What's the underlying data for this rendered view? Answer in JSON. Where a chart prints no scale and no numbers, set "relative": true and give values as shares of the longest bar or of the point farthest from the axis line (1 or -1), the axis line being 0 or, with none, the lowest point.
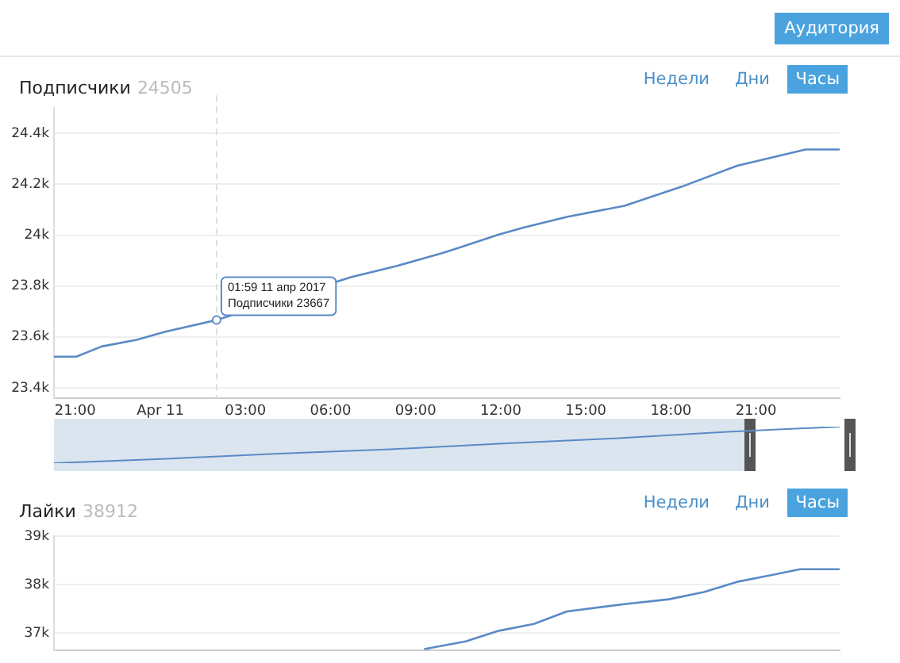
{
  "chart_data": [
    {
      "type": "other",
      "title": "Аудитория"
    },
    {
      "type": "line",
      "title": "Подписчики",
      "subtitle": "24505",
      "color": "#5a8ac6",
      "grid": "y",
      "x": [
        "2017-04-10T20:15",
        "2017-04-10T21:02",
        "2017-04-10T21:56",
        "2017-04-10T23:10",
        "2017-04-11T00:09",
        "2017-04-11T01:59",
        "2017-04-11T06:43",
        "2017-04-11T08:21",
        "2017-04-11T09:57",
        "2017-04-11T10:22",
        "2017-04-11T11:56",
        "2017-04-11T12:48",
        "2017-04-11T14:20",
        "2017-04-11T16:22",
        "2017-04-11T18:23",
        "2017-04-11T20:20",
        "2017-04-11T22:45",
        "2017-04-11T23:57"
      ],
      "values": [
        23523,
        23523,
        23563,
        23589,
        23620,
        23667,
        23835,
        23880,
        23930,
        23945,
        24003,
        24030,
        24072,
        24116,
        24191,
        24273,
        24337,
        24337
      ],
      "xlim": [
        "2017-04-10T20:15",
        "2017-04-11T23:57"
      ],
      "xticks": [
        {
          "value": "2017-04-10T21:00",
          "label": "21:00"
        },
        {
          "value": "2017-04-11T00:00",
          "label": "Apr 11"
        },
        {
          "value": "2017-04-11T03:00",
          "label": "03:00"
        },
        {
          "value": "2017-04-11T06:00",
          "label": "06:00"
        },
        {
          "value": "2017-04-11T09:00",
          "label": "09:00"
        },
        {
          "value": "2017-04-11T12:00",
          "label": "12:00"
        },
        {
          "value": "2017-04-11T15:00",
          "label": "15:00"
        },
        {
          "value": "2017-04-11T18:00",
          "label": "18:00"
        },
        {
          "value": "2017-04-11T21:00",
          "label": "21:00"
        }
      ],
      "ylim": [
        23360,
        24500
      ],
      "yticks": [
        {
          "value": 23400,
          "label": "23.4k"
        },
        {
          "value": 23600,
          "label": "23.6k"
        },
        {
          "value": 23800,
          "label": "23.8k"
        },
        {
          "value": 24000,
          "label": "24k"
        },
        {
          "value": 24200,
          "label": "24.2k"
        },
        {
          "value": 24400,
          "label": "24.4k"
        }
      ],
      "ref_lines": [
        {
          "axis": "x",
          "value": "2017-04-11T01:59",
          "color": "#dddddd",
          "line_style": "dashed"
        }
      ],
      "annotations": [
        "Недели",
        "Дни",
        "Часы",
        {
          "text": "01:59 11 апр 2017\nПодписчики 23667",
          "x": "2017-04-11T01:59",
          "y": 23667
        }
      ]
    },
    {
      "type": "line",
      "relative": true,
      "color": "#5a8ac6",
      "categories": [
        null,
        null,
        null,
        null,
        null,
        null,
        null,
        null
      ],
      "values": [
        0,
        0.12,
        0.26,
        0.38,
        0.54,
        0.68,
        0.86,
        1
      ]
    },
    {
      "type": "line",
      "title": "Лайки",
      "subtitle": "38912",
      "color": "#5a8ac6",
      "grid": "y",
      "tick_labels": "y",
      "x": [
        "2017-04-11T09:18",
        "2017-04-11T10:46",
        "2017-04-11T11:56",
        "2017-04-11T13:10",
        "2017-04-11T14:20",
        "2017-04-11T16:22",
        "2017-04-11T17:56",
        "2017-04-11T19:10",
        "2017-04-11T20:20",
        "2017-04-11T21:34",
        "2017-04-11T22:33",
        "2017-04-11T23:57"
      ],
      "values": [
        36670,
        36830,
        37050,
        37190,
        37450,
        37600,
        37700,
        37850,
        38060,
        38200,
        38320,
        38320
      ],
      "xlim": [
        "2017-04-10T20:15",
        "2017-04-11T23:57"
      ],
      "ylim": [
        36650,
        39000
      ],
      "yticks": [
        {
          "value": 37000,
          "label": "37k"
        },
        {
          "value": 38000,
          "label": "38k"
        },
        {
          "value": 39000,
          "label": "39k"
        }
      ],
      "annotations": [
        "Недели",
        "Дни",
        "Часы"
      ]
    }
  ]
}
